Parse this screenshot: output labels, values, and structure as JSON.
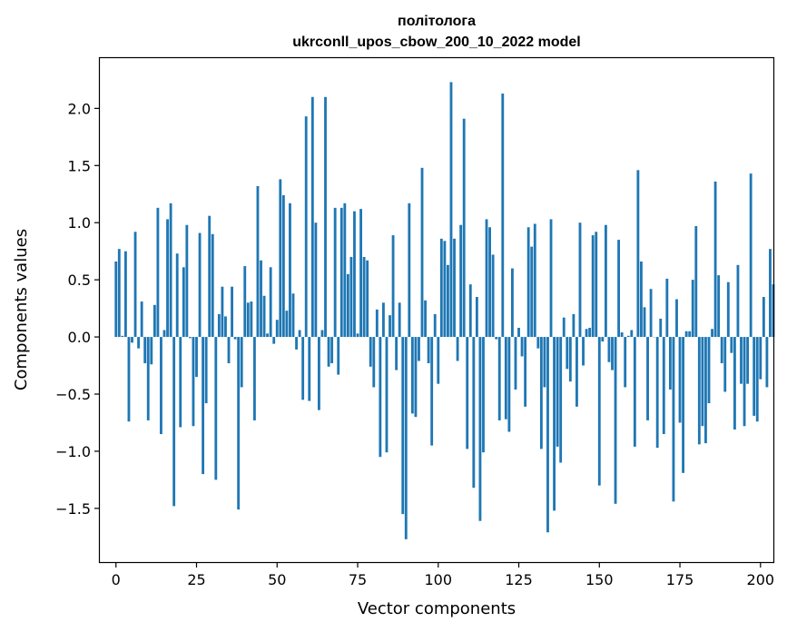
{
  "chart_data": {
    "type": "bar",
    "title": "політолога",
    "subtitle": "ukrconll_upos_cbow_200_10_2022 model",
    "xlabel": "Vector components",
    "ylabel": "Components values",
    "xlim": [
      -5,
      204
    ],
    "ylim": [
      -1.97,
      2.44
    ],
    "xticks": [
      0,
      25,
      50,
      75,
      100,
      125,
      150,
      175,
      200
    ],
    "yticks": [
      -1.5,
      -1.0,
      -0.5,
      0.0,
      0.5,
      1.0,
      1.5,
      2.0
    ],
    "ytick_labels": [
      "−1.5",
      "−1.0",
      "−0.5",
      "0.0",
      "0.5",
      "1.0",
      "1.5",
      "2.0"
    ],
    "bar_color": "#1f77b4",
    "grid": false,
    "legend": "none",
    "values": [
      0.66,
      0.77,
      0.01,
      0.75,
      -0.74,
      -0.05,
      0.92,
      -0.1,
      0.31,
      -0.23,
      -0.73,
      -0.24,
      0.28,
      1.13,
      -0.85,
      0.06,
      1.03,
      1.17,
      -1.48,
      0.73,
      -0.79,
      0.61,
      0.98,
      -0.01,
      -0.78,
      -0.35,
      0.91,
      -1.2,
      -0.58,
      1.06,
      0.9,
      -1.25,
      0.2,
      0.44,
      0.18,
      -0.23,
      0.44,
      -0.02,
      -1.51,
      -0.44,
      0.62,
      0.3,
      0.31,
      -0.73,
      1.32,
      0.67,
      0.36,
      0.03,
      0.61,
      -0.06,
      0.15,
      1.38,
      1.24,
      0.23,
      1.17,
      0.38,
      -0.11,
      0.06,
      -0.55,
      1.93,
      -0.56,
      2.1,
      1.0,
      -0.64,
      0.06,
      2.1,
      -0.26,
      -0.23,
      1.13,
      -0.33,
      1.13,
      1.17,
      0.55,
      0.7,
      1.1,
      0.03,
      1.12,
      0.7,
      0.67,
      -0.26,
      -0.44,
      0.24,
      -1.05,
      0.3,
      -1.01,
      0.19,
      0.89,
      -0.29,
      0.3,
      -1.55,
      -1.77,
      1.17,
      -0.67,
      -0.7,
      -0.21,
      1.48,
      0.32,
      -0.23,
      -0.95,
      0.2,
      -0.41,
      0.86,
      0.84,
      0.63,
      2.23,
      0.86,
      -0.21,
      0.98,
      1.91,
      -0.98,
      0.46,
      -1.32,
      0.35,
      -1.61,
      -1.01,
      1.03,
      0.96,
      0.72,
      -0.02,
      -0.73,
      2.13,
      -0.72,
      -0.83,
      0.6,
      -0.46,
      0.08,
      -0.17,
      -0.61,
      0.96,
      0.79,
      0.99,
      -0.1,
      -0.98,
      -0.44,
      -1.71,
      1.03,
      -1.52,
      -0.96,
      -1.1,
      0.17,
      -0.28,
      -0.39,
      0.2,
      -0.61,
      1.0,
      -0.25,
      0.07,
      0.08,
      0.89,
      0.92,
      -1.3,
      -0.04,
      0.98,
      -0.22,
      -0.29,
      -1.46,
      0.85,
      0.04,
      -0.44,
      0.01,
      0.06,
      -0.96,
      1.46,
      0.66,
      0.26,
      -0.73,
      0.42,
      0.0,
      -0.97,
      0.16,
      -0.85,
      0.51,
      -0.46,
      -1.44,
      0.33,
      -0.75,
      -1.19,
      0.05,
      0.05,
      0.5,
      0.97,
      -0.94,
      -0.78,
      -0.93,
      -0.58,
      0.07,
      1.36,
      0.54,
      -0.23,
      -0.48,
      0.48,
      -0.14,
      -0.81,
      0.63,
      -0.41,
      -0.78,
      -0.41,
      1.43,
      -0.69,
      -0.74,
      -0.37,
      0.35,
      -0.44,
      0.77,
      0.46
    ]
  }
}
